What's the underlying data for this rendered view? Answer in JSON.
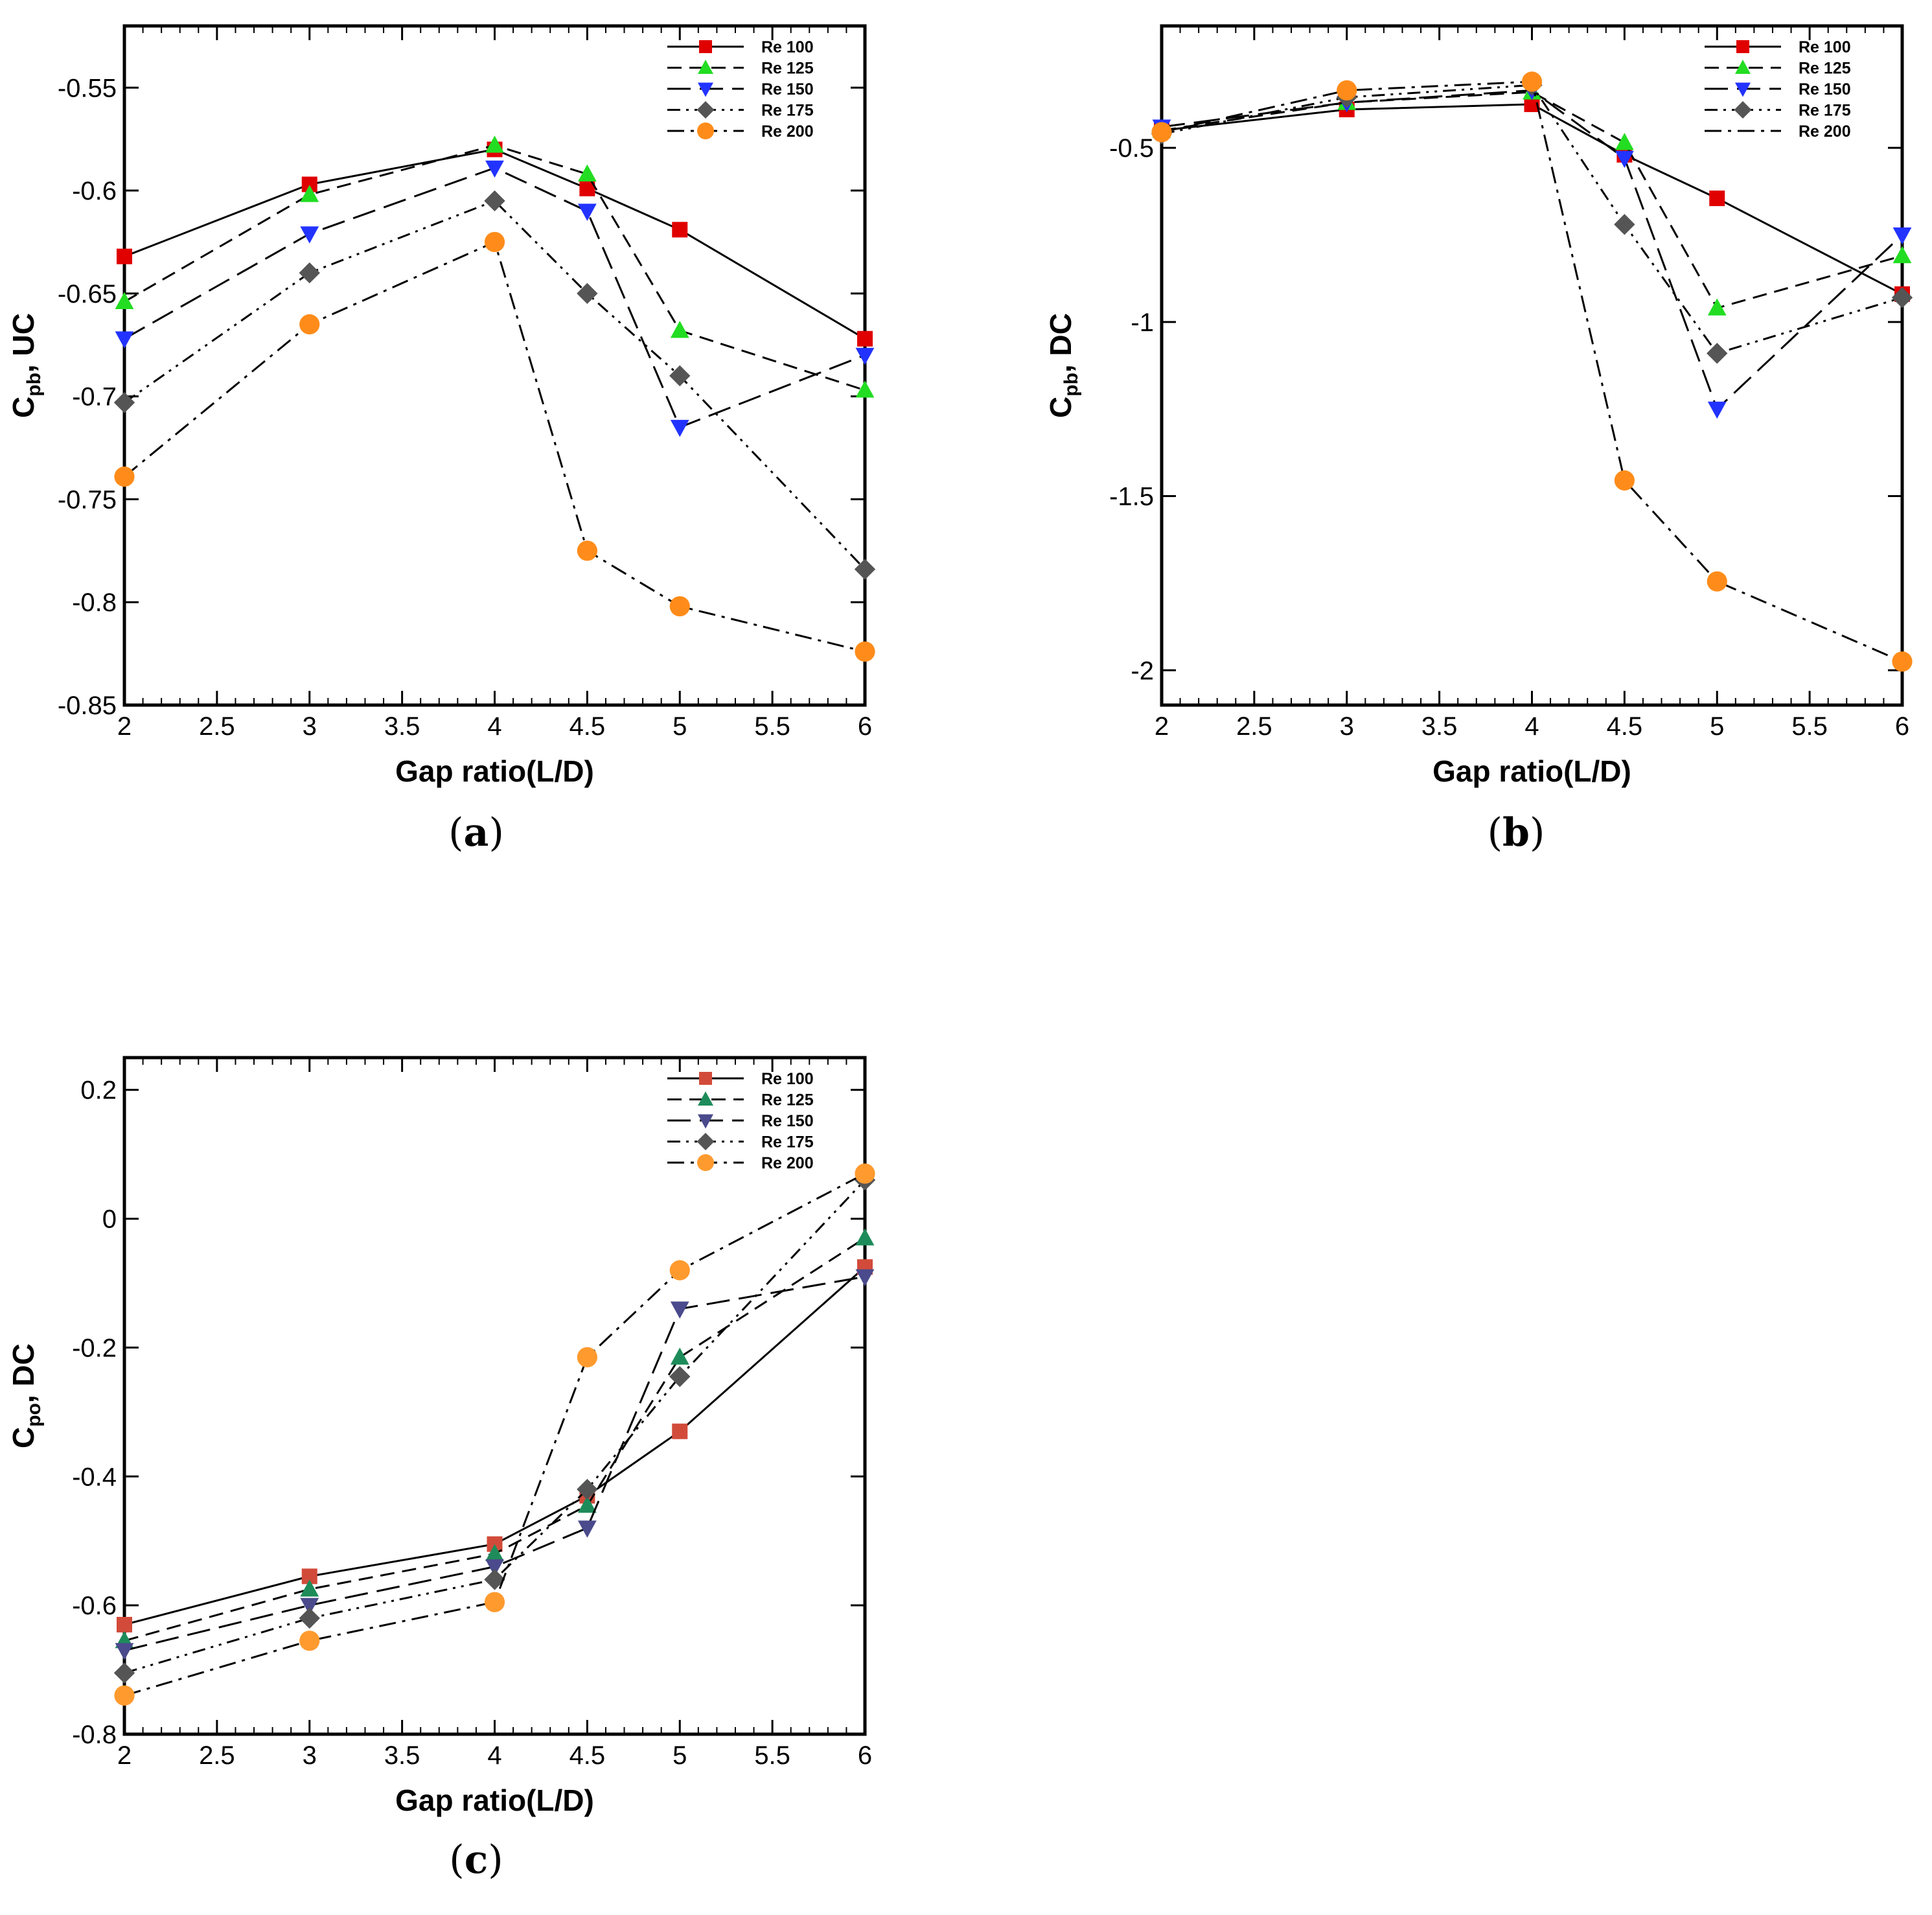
{
  "figure": {
    "panels": [
      {
        "id": "a",
        "caption_open": "(",
        "caption_letter": "a",
        "caption_close": ")"
      },
      {
        "id": "b",
        "caption_open": "(",
        "caption_letter": "b",
        "caption_close": ")"
      },
      {
        "id": "c",
        "caption_open": "(",
        "caption_letter": "c",
        "caption_close": ")"
      }
    ]
  },
  "chart_data": [
    {
      "type": "line",
      "panel": "a",
      "title": "",
      "xlabel": "Gap ratio(L/D)",
      "ylabel_main": "C",
      "ylabel_sub": "pb",
      "ylabel_rest": ", UC",
      "xlim": [
        2,
        6
      ],
      "ylim": [
        -0.85,
        -0.52
      ],
      "xticks": [
        2,
        2.5,
        3,
        3.5,
        4,
        4.5,
        5,
        5.5,
        6
      ],
      "xtick_labels": [
        "2",
        "2.5",
        "3",
        "3.5",
        "4",
        "4.5",
        "5",
        "5.5",
        "6"
      ],
      "yticks": [
        -0.85,
        -0.8,
        -0.75,
        -0.7,
        -0.65,
        -0.6,
        -0.55
      ],
      "ytick_labels": [
        "-0.85",
        "-0.8",
        "-0.75",
        "-0.7",
        "-0.65",
        "-0.6",
        "-0.55"
      ],
      "legend_position": "top-right",
      "x": [
        2,
        3,
        4,
        4.5,
        5,
        6
      ],
      "series": [
        {
          "name": "Re 100",
          "marker": "square",
          "color": "#e00000",
          "dash": "solid",
          "values": [
            -0.632,
            -0.597,
            -0.58,
            -0.599,
            -0.619,
            -0.672
          ]
        },
        {
          "name": "Re 125",
          "marker": "triangle-up",
          "color": "#22dd22",
          "dash": "dashed",
          "values": [
            -0.654,
            -0.602,
            -0.578,
            -0.592,
            -0.668,
            -0.697
          ]
        },
        {
          "name": "Re 150",
          "marker": "triangle-down",
          "color": "#2233ff",
          "dash": "longdash",
          "values": [
            -0.672,
            -0.621,
            -0.589,
            -0.61,
            -0.715,
            -0.68
          ]
        },
        {
          "name": "Re 175",
          "marker": "diamond",
          "color": "#555555",
          "dash": "dashdotdot",
          "values": [
            -0.703,
            -0.64,
            -0.605,
            -0.65,
            -0.69,
            -0.784
          ]
        },
        {
          "name": "Re 200",
          "marker": "circle",
          "color": "#ff8c1a",
          "dash": "dashdot",
          "values": [
            -0.739,
            -0.665,
            -0.625,
            -0.775,
            -0.802,
            -0.824
          ]
        }
      ]
    },
    {
      "type": "line",
      "panel": "b",
      "title": "",
      "xlabel": "Gap ratio(L/D)",
      "ylabel_main": "C",
      "ylabel_sub": "pb",
      "ylabel_rest": ", DC",
      "xlim": [
        2,
        6
      ],
      "ylim": [
        -2.1,
        -0.15
      ],
      "xticks": [
        2,
        2.5,
        3,
        3.5,
        4,
        4.5,
        5,
        5.5,
        6
      ],
      "xtick_labels": [
        "2",
        "2.5",
        "3",
        "3.5",
        "4",
        "4.5",
        "5",
        "5.5",
        "6"
      ],
      "yticks": [
        -2,
        -1.5,
        -1,
        -0.5
      ],
      "ytick_labels": [
        "-2",
        "-1.5",
        "-1",
        "-0.5"
      ],
      "legend_position": "top-right",
      "x": [
        2,
        3,
        4,
        4.5,
        5,
        6
      ],
      "series": [
        {
          "name": "Re 100",
          "marker": "square",
          "color": "#e00000",
          "dash": "solid",
          "values": [
            -0.45,
            -0.39,
            -0.375,
            -0.52,
            -0.645,
            -0.92
          ]
        },
        {
          "name": "Re 125",
          "marker": "triangle-up",
          "color": "#22dd22",
          "dash": "dashed",
          "values": [
            -0.45,
            -0.37,
            -0.34,
            -0.485,
            -0.96,
            -0.81
          ]
        },
        {
          "name": "Re 150",
          "marker": "triangle-down",
          "color": "#2233ff",
          "dash": "longdash",
          "values": [
            -0.44,
            -0.37,
            -0.335,
            -0.53,
            -1.25,
            -0.75
          ]
        },
        {
          "name": "Re 175",
          "marker": "diamond",
          "color": "#555555",
          "dash": "dashdotdot",
          "values": [
            -0.46,
            -0.355,
            -0.32,
            -0.72,
            -1.09,
            -0.93
          ]
        },
        {
          "name": "Re 200",
          "marker": "circle",
          "color": "#ff8c1a",
          "dash": "dashdot",
          "values": [
            -0.455,
            -0.335,
            -0.31,
            -1.455,
            -1.745,
            -1.975
          ]
        }
      ],
      "legend_markers": [
        true,
        true,
        true,
        true,
        false
      ]
    },
    {
      "type": "line",
      "panel": "c",
      "title": "",
      "xlabel": "Gap ratio(L/D)",
      "ylabel_main": "C",
      "ylabel_sub": "po",
      "ylabel_rest": ", DC",
      "xlim": [
        2,
        6
      ],
      "ylim": [
        -0.8,
        0.25
      ],
      "xticks": [
        2,
        2.5,
        3,
        3.5,
        4,
        4.5,
        5,
        5.5,
        6
      ],
      "xtick_labels": [
        "2",
        "2.5",
        "3",
        "3.5",
        "4",
        "4.5",
        "5",
        "5.5",
        "6"
      ],
      "yticks": [
        -0.8,
        -0.6,
        -0.4,
        -0.2,
        0,
        0.2
      ],
      "ytick_labels": [
        "-0.8",
        "-0.6",
        "-0.4",
        "-0.2",
        "0",
        "0.2"
      ],
      "legend_position": "top-right",
      "x": [
        2,
        3,
        4,
        4.5,
        5,
        6
      ],
      "series": [
        {
          "name": "Re 100",
          "marker": "square",
          "color": "#d24b3a",
          "dash": "solid",
          "values": [
            -0.63,
            -0.555,
            -0.505,
            -0.43,
            -0.33,
            -0.075
          ]
        },
        {
          "name": "Re 125",
          "marker": "triangle-up",
          "color": "#1e8c5a",
          "dash": "dashed",
          "values": [
            -0.655,
            -0.575,
            -0.52,
            -0.445,
            -0.215,
            -0.03
          ]
        },
        {
          "name": "Re 150",
          "marker": "triangle-down",
          "color": "#4a4a8c",
          "dash": "longdash",
          "values": [
            -0.67,
            -0.6,
            -0.54,
            -0.48,
            -0.14,
            -0.09
          ]
        },
        {
          "name": "Re 175",
          "marker": "diamond",
          "color": "#555555",
          "dash": "dashdotdot",
          "values": [
            -0.705,
            -0.62,
            -0.56,
            -0.42,
            -0.245,
            0.06
          ]
        },
        {
          "name": "Re 200",
          "marker": "circle",
          "color": "#ff9a2e",
          "dash": "dashdot",
          "values": [
            -0.74,
            -0.655,
            -0.595,
            -0.215,
            -0.08,
            0.07
          ]
        }
      ]
    }
  ]
}
